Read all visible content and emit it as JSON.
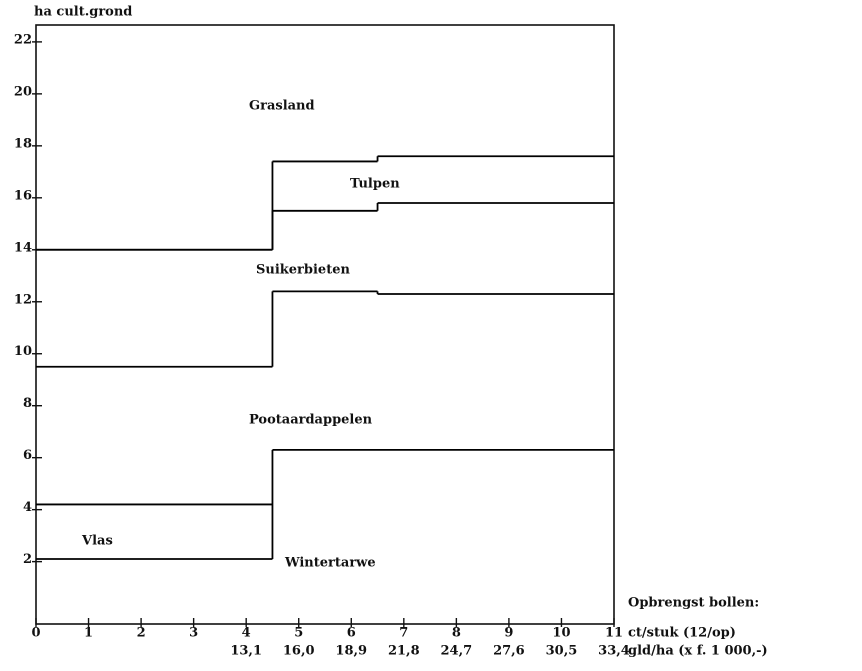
{
  "chart_data": {
    "type": "step",
    "y_label": "ha cult.grond",
    "xlim": [
      0,
      11
    ],
    "ylim": [
      -0.4,
      22.65
    ],
    "xticks": [
      0,
      1,
      2,
      3,
      4,
      5,
      6,
      7,
      8,
      9,
      10,
      11
    ],
    "yticks": [
      2,
      4,
      6,
      8,
      10,
      12,
      14,
      16,
      18,
      20,
      22
    ],
    "x2ticks": [
      {
        "value": 4,
        "label": "13,1"
      },
      {
        "value": 5,
        "label": "16,0"
      },
      {
        "value": 6,
        "label": "18,9"
      },
      {
        "value": 7,
        "label": "21,8"
      },
      {
        "value": 8,
        "label": "24,7"
      },
      {
        "value": 9,
        "label": "27,6"
      },
      {
        "value": 10,
        "label": "30,5"
      },
      {
        "value": 11,
        "label": "33,4"
      }
    ],
    "x_label_lines": [
      "Opbrengst bollen:",
      "ct/stuk (12/op)",
      "gld/ha  (x f. 1 000,-)"
    ],
    "color": "#000000",
    "series": [
      {
        "bins": [
          0,
          4.5,
          11
        ],
        "values": [
          2.1,
          6.3
        ]
      },
      {
        "bins": [
          0,
          4.5
        ],
        "values": [
          4.2
        ]
      },
      {
        "bins": [
          0,
          4.5,
          6.5,
          11
        ],
        "values": [
          9.5,
          12.4,
          12.3
        ]
      },
      {
        "bins": [
          0,
          4.5,
          6.5,
          11
        ],
        "values": [
          14.0,
          15.5,
          15.8
        ]
      },
      {
        "bins": [
          0,
          4.5,
          6.5,
          11
        ],
        "values": [
          14.0,
          17.4,
          17.6
        ]
      }
    ],
    "annotations": [
      "Grasland",
      "Tulpen",
      "Suikerbieten",
      "Pootaardappelen",
      "Vlas",
      "Wintertarwe"
    ]
  }
}
